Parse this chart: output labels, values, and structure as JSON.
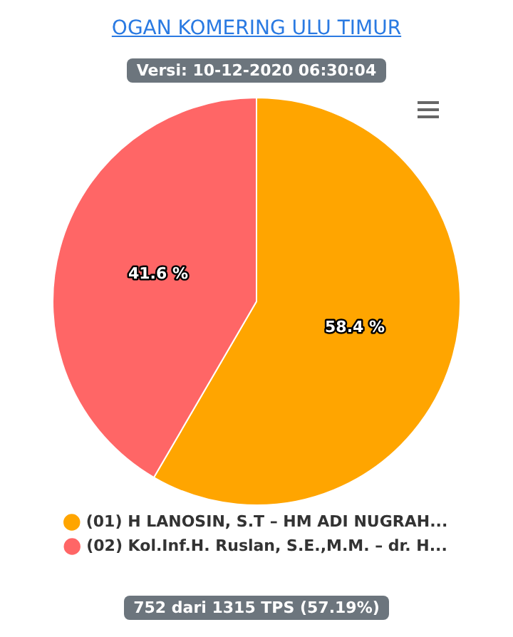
{
  "chart_data": {
    "type": "pie",
    "title": "OGAN KOMERING ULU TIMUR",
    "subtitle": "Versi: 10-12-2020 06:30:04",
    "categories": [
      "(01) H LANOSIN, S.T – HM ADI NUGRAH...",
      "(02) Kol.Inf.H. Ruslan, S.E.,M.M. – dr. H..."
    ],
    "values": [
      58.4,
      41.6
    ],
    "colors": [
      "#ffa500",
      "#ff6666"
    ],
    "value_labels": [
      "58.4 %",
      "41.6 %"
    ],
    "legend": "bottom",
    "annotations": [
      "752 dari 1315 TPS (57.19%)"
    ]
  }
}
